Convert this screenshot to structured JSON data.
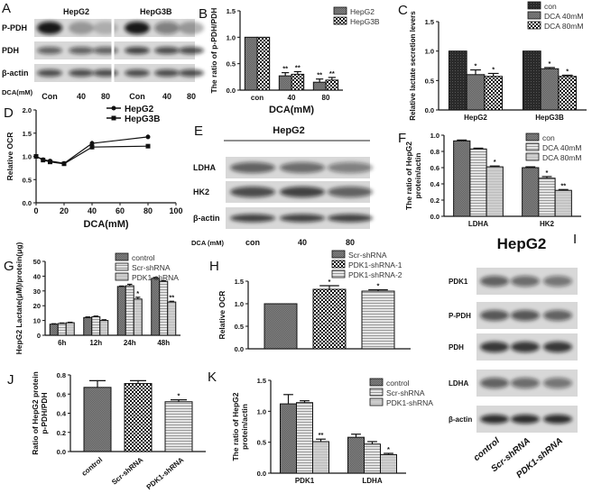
{
  "panel_labels": [
    "A",
    "B",
    "C",
    "D",
    "E",
    "F",
    "G",
    "H",
    "I",
    "J",
    "K"
  ],
  "blots": {
    "A": {
      "headers": [
        "HepG2",
        "HepG3B"
      ],
      "rows": [
        "P-PDH",
        "PDH",
        "β-actin"
      ],
      "lane_title": "DCA(mM)",
      "lanes": [
        "Con",
        "40",
        "80",
        "Con",
        "40",
        "80"
      ]
    },
    "E": {
      "header": "HepG2",
      "rows": [
        "LDHA",
        "HK2",
        "β-actin"
      ],
      "lane_title": "DCA (mM)",
      "lanes": [
        "con",
        "40",
        "80"
      ]
    },
    "I": {
      "header": "HepG2",
      "rows": [
        "PDK1",
        "P-PDH",
        "PDH",
        "LDHA",
        "β-actin"
      ],
      "lanes": [
        "control",
        "Scr-shRNA",
        "PDK1-shRNA"
      ]
    }
  },
  "chart_data": [
    {
      "panel": "B",
      "type": "bar",
      "categories": [
        "con",
        "40",
        "80"
      ],
      "ylim": [
        0,
        1.5
      ],
      "yticks": [
        "0.0",
        "0.5",
        "1.0",
        "1.5"
      ],
      "ylabel": "The ratio of p-PDH/PDH",
      "xlabel": "DCA(mM)",
      "legend": "top-right",
      "series": [
        {
          "name": "HepG2",
          "values": [
            1.0,
            0.27,
            0.15
          ],
          "errors": [
            0,
            0.06,
            0.06
          ],
          "sig": [
            "",
            "**",
            "**"
          ]
        },
        {
          "name": "HepG3B",
          "values": [
            1.0,
            0.3,
            0.19
          ],
          "errors": [
            0,
            0.05,
            0.05
          ],
          "sig": [
            "",
            "**",
            "**"
          ]
        }
      ]
    },
    {
      "panel": "C",
      "type": "bar",
      "categories": [
        "HepG2",
        "HepG3B"
      ],
      "ylim": [
        0,
        1.5
      ],
      "yticks": [
        "0.0",
        "0.5",
        "1.0",
        "1.5"
      ],
      "ylabel": "Relative lactate secretion levers",
      "xlabel": "",
      "legend": "top-right",
      "series": [
        {
          "name": "con",
          "values": [
            1.0,
            1.0
          ],
          "errors": [
            0,
            0
          ],
          "sig": [
            "",
            ""
          ]
        },
        {
          "name": "DCA 40mM",
          "values": [
            0.6,
            0.7
          ],
          "errors": [
            0.08,
            0.02
          ],
          "sig": [
            "*",
            "*"
          ]
        },
        {
          "name": "DCA 80mM",
          "values": [
            0.57,
            0.57
          ],
          "errors": [
            0.05,
            0.02
          ],
          "sig": [
            "*",
            "*"
          ]
        }
      ]
    },
    {
      "panel": "D",
      "type": "line",
      "x": [
        0,
        5,
        10,
        20,
        40,
        80
      ],
      "xlim": [
        0,
        100
      ],
      "xticks": [
        "0",
        "20",
        "40",
        "60",
        "80",
        "100"
      ],
      "ylim": [
        0,
        2.0
      ],
      "yticks": [
        "0.0",
        "0.5",
        "1.0",
        "1.5",
        "2.0"
      ],
      "ylabel": "Relative OCR",
      "xlabel": "DCA(mM)",
      "legend": "top-right",
      "series": [
        {
          "name": "HepG2",
          "marker": "circle",
          "values": [
            1.0,
            0.93,
            0.9,
            0.85,
            1.28,
            1.42
          ],
          "errors": [
            0.02,
            0.02,
            0.03,
            0.03,
            0.06,
            0.05
          ]
        },
        {
          "name": "HepG3B",
          "marker": "square",
          "values": [
            1.0,
            0.92,
            0.88,
            0.84,
            1.2,
            1.22
          ],
          "errors": [
            0.02,
            0.02,
            0.03,
            0.03,
            0.05,
            0.03
          ]
        }
      ]
    },
    {
      "panel": "F",
      "type": "bar",
      "categories": [
        "LDHA",
        "HK2"
      ],
      "ylim": [
        0,
        1.0
      ],
      "yticks": [
        "0.0",
        "0.2",
        "0.4",
        "0.6",
        "0.8",
        "1.0"
      ],
      "ylabel": "The ratio of HepG2",
      "ylabel2": "protein/actin",
      "xlabel": "",
      "legend": "top-right",
      "series": [
        {
          "name": "con",
          "values": [
            0.93,
            0.6
          ],
          "errors": [
            0.01,
            0.01
          ],
          "sig": [
            "",
            ""
          ]
        },
        {
          "name": "DCA 40mM",
          "values": [
            0.83,
            0.47
          ],
          "errors": [
            0.01,
            0.02
          ],
          "sig": [
            "",
            "*"
          ]
        },
        {
          "name": "DCA 80mM",
          "values": [
            0.61,
            0.32
          ],
          "errors": [
            0.01,
            0.01
          ],
          "sig": [
            "*",
            "**"
          ]
        }
      ]
    },
    {
      "panel": "G",
      "type": "bar",
      "categories": [
        "6h",
        "12h",
        "24h",
        "48h"
      ],
      "ylim": [
        0,
        50
      ],
      "yticks": [
        "0",
        "10",
        "20",
        "30",
        "40",
        "50"
      ],
      "ylabel": "HepG2 Lactate(μM)/protein(μg)",
      "xlabel": "",
      "legend": "top-right",
      "series": [
        {
          "name": "control",
          "values": [
            7.5,
            12,
            33,
            38.5
          ],
          "errors": [
            0.3,
            0.4,
            0.3,
            0.6
          ],
          "sig": [
            "",
            "",
            "",
            ""
          ]
        },
        {
          "name": "Scr-shRNA",
          "values": [
            8,
            12.5,
            33.5,
            36.5
          ],
          "errors": [
            0.3,
            0.5,
            1.0,
            0.4
          ],
          "sig": [
            "",
            "",
            "",
            ""
          ]
        },
        {
          "name": "PDK1-shRNA",
          "values": [
            8.5,
            10,
            24.5,
            22.5
          ],
          "errors": [
            0.3,
            0.5,
            1.2,
            0.5
          ],
          "sig": [
            "",
            "",
            "*",
            "**"
          ]
        }
      ]
    },
    {
      "panel": "H",
      "type": "bar",
      "categories": [
        ""
      ],
      "ylim": [
        0,
        1.5
      ],
      "yticks": [
        "0.0",
        "0.5",
        "1.0",
        "1.5"
      ],
      "ylabel": "Relative OCR",
      "xlabel": "",
      "legend": "top-right",
      "series": [
        {
          "name": "Scr-shRNA",
          "values": [
            1.0
          ],
          "errors": [
            0
          ],
          "sig": [
            ""
          ]
        },
        {
          "name": "PDK1-shRNA-1",
          "values": [
            1.32
          ],
          "errors": [
            0.08
          ],
          "sig": [
            "*"
          ]
        },
        {
          "name": "PDK1-shRNA-2",
          "values": [
            1.28
          ],
          "errors": [
            0.03
          ],
          "sig": [
            "*"
          ]
        }
      ]
    },
    {
      "panel": "J",
      "type": "bar",
      "categories": [
        ""
      ],
      "ylim": [
        0,
        0.8
      ],
      "yticks": [
        "0.0",
        "0.2",
        "0.4",
        "0.6",
        "0.8"
      ],
      "ylabel": "Ratio of HepG2 protein",
      "ylabel2": "p-PDH/PDH",
      "xlabel": "",
      "legend": "none",
      "series": [
        {
          "name": "control",
          "values": [
            0.67
          ],
          "errors": [
            0.07
          ],
          "sig": [
            ""
          ]
        },
        {
          "name": "Scr-shRNA",
          "values": [
            0.71
          ],
          "errors": [
            0.03
          ],
          "sig": [
            ""
          ]
        },
        {
          "name": "PDK1-shRNA",
          "values": [
            0.52
          ],
          "errors": [
            0.02
          ],
          "sig": [
            "*"
          ]
        }
      ]
    },
    {
      "panel": "K",
      "type": "bar",
      "categories": [
        "PDK1",
        "LDHA"
      ],
      "ylim": [
        0,
        1.5
      ],
      "yticks": [
        "0.0",
        "0.5",
        "1.0",
        "1.5"
      ],
      "ylabel": "The ratio of HepG2",
      "ylabel2": "protein/actin",
      "xlabel": "",
      "legend": "top-right",
      "series": [
        {
          "name": "control",
          "values": [
            1.12,
            0.58
          ],
          "errors": [
            0.15,
            0.05
          ],
          "sig": [
            "",
            ""
          ]
        },
        {
          "name": "Scr-shRNA",
          "values": [
            1.14,
            0.47
          ],
          "errors": [
            0.03,
            0.04
          ],
          "sig": [
            "",
            ""
          ]
        },
        {
          "name": "PDK1-shRNA",
          "values": [
            0.51,
            0.3
          ],
          "errors": [
            0.04,
            0.02
          ],
          "sig": [
            "**",
            "*"
          ]
        }
      ]
    }
  ]
}
